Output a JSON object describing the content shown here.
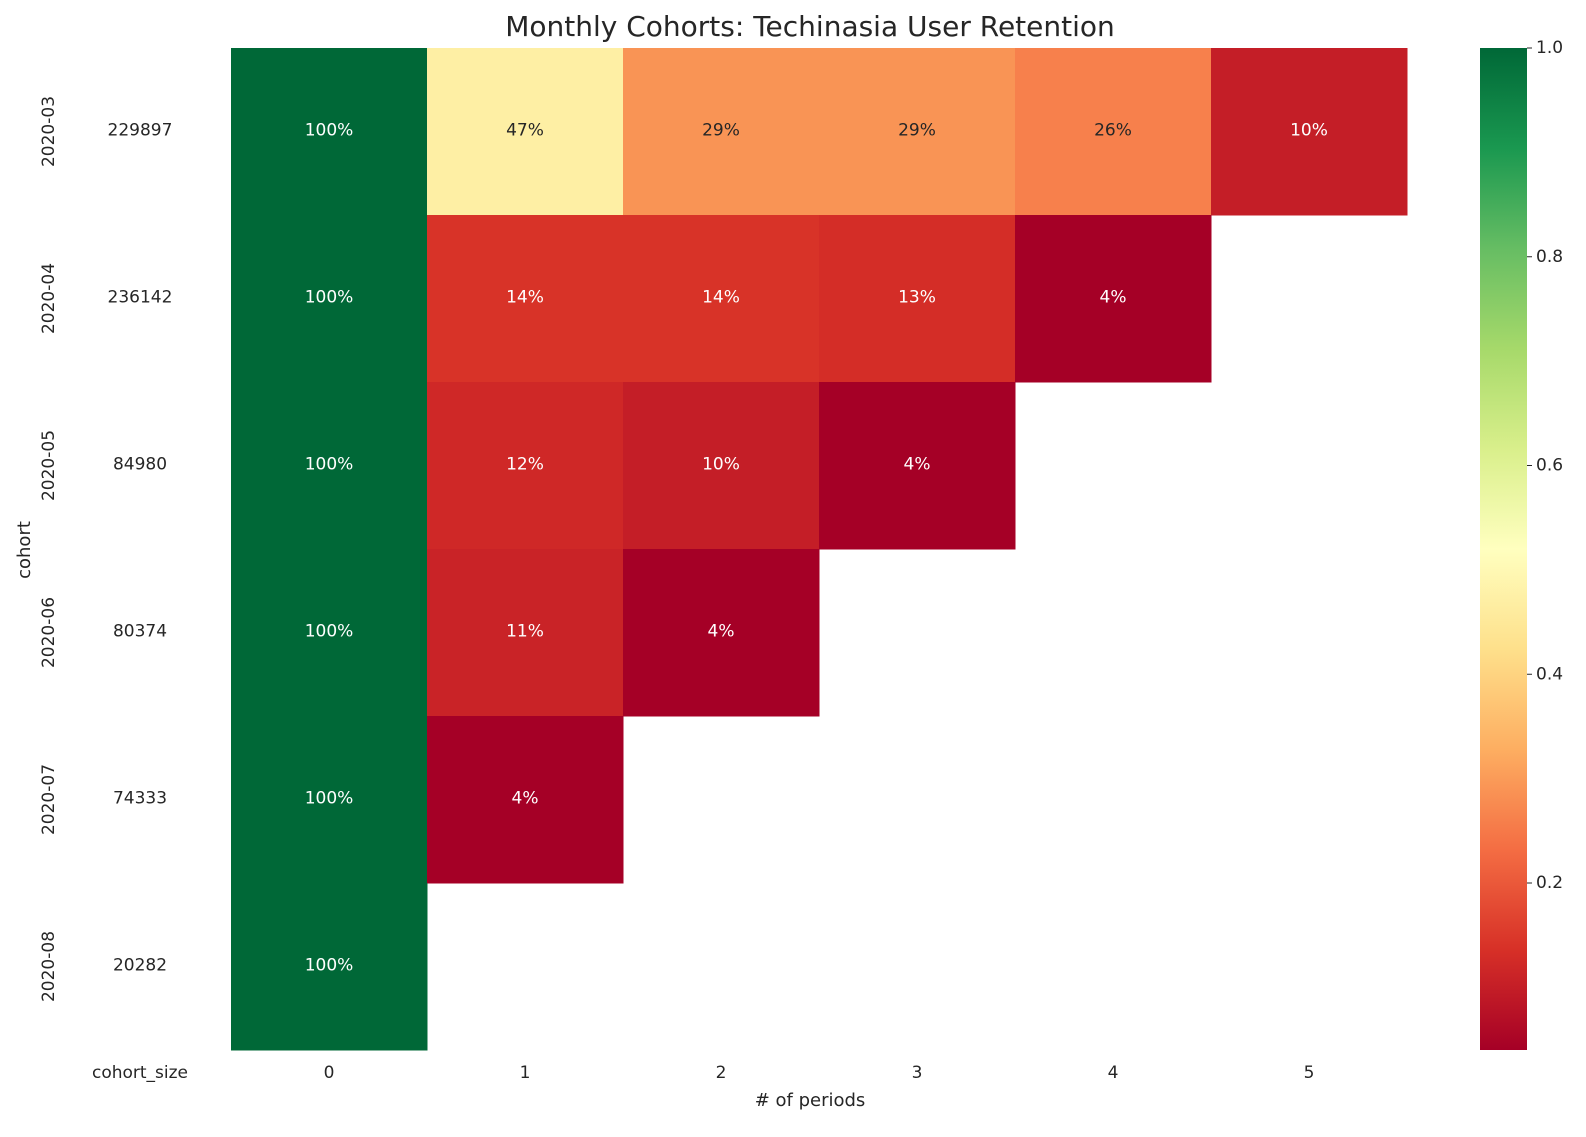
{
  "chart_data": {
    "type": "heatmap",
    "title": "Monthly Cohorts: Techinasia User Retention",
    "xlabel": "# of periods",
    "ylabel": "cohort",
    "size_column_label": "cohort_size",
    "cohorts": [
      "2020-03",
      "2020-04",
      "2020-05",
      "2020-06",
      "2020-07",
      "2020-08"
    ],
    "cohort_sizes": [
      "229897",
      "236142",
      "84980",
      "80374",
      "74333",
      "20282"
    ],
    "periods": [
      "0",
      "1",
      "2",
      "3",
      "4",
      "5"
    ],
    "values": [
      [
        1.0,
        0.47,
        0.29,
        0.29,
        0.26,
        0.1
      ],
      [
        1.0,
        0.14,
        0.14,
        0.13,
        0.04,
        null
      ],
      [
        1.0,
        0.12,
        0.1,
        0.04,
        null,
        null
      ],
      [
        1.0,
        0.11,
        0.04,
        null,
        null,
        null
      ],
      [
        1.0,
        0.04,
        null,
        null,
        null,
        null
      ],
      [
        1.0,
        null,
        null,
        null,
        null,
        null
      ]
    ],
    "value_labels": [
      [
        "100%",
        "47%",
        "29%",
        "29%",
        "26%",
        "10%"
      ],
      [
        "100%",
        "14%",
        "14%",
        "13%",
        "4%",
        ""
      ],
      [
        "100%",
        "12%",
        "10%",
        "4%",
        "",
        ""
      ],
      [
        "100%",
        "11%",
        "4%",
        "",
        "",
        ""
      ],
      [
        "100%",
        "4%",
        "",
        "",
        "",
        ""
      ],
      [
        "100%",
        "",
        "",
        "",
        "",
        ""
      ]
    ],
    "colormap": "RdYlGn",
    "colorbar": {
      "range": [
        0.04,
        1.0
      ],
      "ticks": [
        "0.2",
        "0.4",
        "0.6",
        "0.8",
        "1.0"
      ],
      "tick_values": [
        0.2,
        0.4,
        0.6,
        0.8,
        1.0
      ]
    },
    "grid": false
  }
}
